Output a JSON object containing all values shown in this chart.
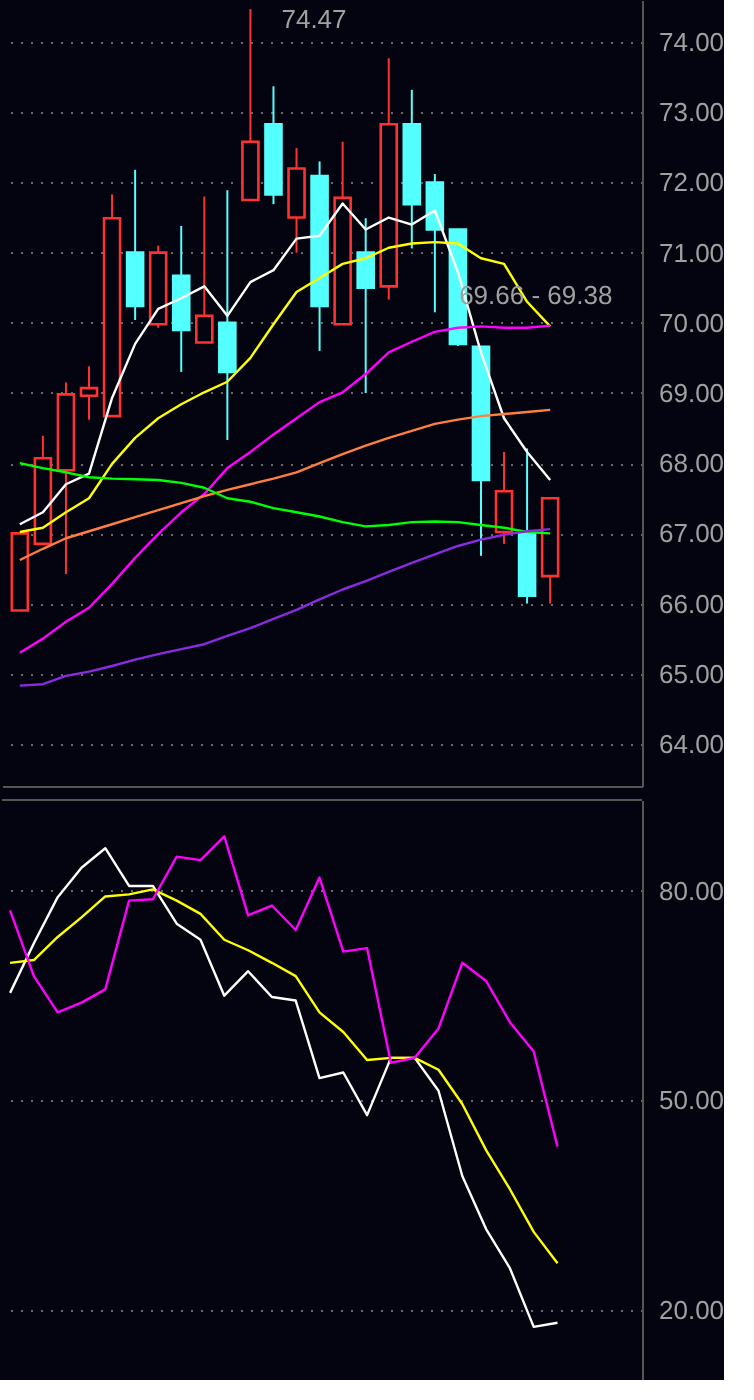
{
  "chart_data": [
    {
      "type": "candlestick",
      "categories": [
        null,
        null,
        null,
        null,
        null,
        null,
        null,
        null,
        null,
        null,
        null,
        null,
        null,
        null,
        null,
        null,
        null,
        null,
        null,
        null,
        null,
        null,
        null,
        null
      ],
      "ohlc": [
        [
          65.9,
          67.0,
          65.9,
          67.0
        ],
        [
          66.85,
          68.39,
          66.85,
          68.07
        ],
        [
          67.9,
          69.15,
          66.42,
          68.98
        ],
        [
          68.96,
          69.38,
          68.62,
          69.07
        ],
        [
          68.67,
          71.83,
          68.67,
          71.49
        ],
        [
          71.0,
          72.18,
          70.04,
          70.24
        ],
        [
          69.98,
          71.1,
          69.93,
          71.0
        ],
        [
          70.67,
          71.38,
          69.3,
          69.9
        ],
        [
          69.72,
          71.8,
          69.72,
          70.1
        ],
        [
          70.0,
          71.89,
          68.33,
          69.3
        ],
        [
          71.75,
          74.47,
          71.75,
          72.58
        ],
        [
          72.83,
          73.37,
          71.69,
          71.83
        ],
        [
          71.5,
          72.49,
          71.0,
          72.2
        ],
        [
          72.09,
          72.3,
          69.6,
          70.24
        ],
        [
          69.98,
          72.58,
          69.98,
          71.78
        ],
        [
          71.0,
          71.49,
          69.0,
          70.5
        ],
        [
          70.52,
          73.77,
          70.33,
          72.83
        ],
        [
          72.83,
          73.32,
          71.06,
          71.69
        ],
        [
          72.0,
          72.12,
          70.15,
          71.33
        ],
        [
          71.33,
          71.33,
          69.67,
          69.7
        ],
        [
          69.66,
          69.66,
          66.68,
          67.76
        ],
        [
          67.02,
          68.16,
          66.85,
          67.6
        ],
        [
          67.0,
          68.21,
          66.0,
          66.11
        ],
        [
          66.39,
          67.5,
          66.0,
          67.5
        ]
      ],
      "colors": [
        "#ff3232",
        "#ff3232",
        "#ff3232",
        "#ff3232",
        "#ff3232",
        "#54ffff",
        "#ff3232",
        "#54ffff",
        "#ff3232",
        "#54ffff",
        "#ff3232",
        "#54ffff",
        "#ff3232",
        "#54ffff",
        "#ff3232",
        "#54ffff",
        "#ff3232",
        "#54ffff",
        "#54ffff",
        "#54ffff",
        "#54ffff",
        "#ff3232",
        "#54ffff",
        "#ff3232"
      ],
      "series": [
        {
          "type": "line",
          "color": "#ffffff",
          "values": [
            67.13,
            67.3,
            67.7,
            67.85,
            68.93,
            69.7,
            70.2,
            70.35,
            70.52,
            70.1,
            70.58,
            70.75,
            71.2,
            71.24,
            71.7,
            71.33,
            71.5,
            71.4,
            71.6,
            70.72,
            69.58,
            68.64,
            68.16,
            67.76
          ]
        },
        {
          "type": "line",
          "color": "#ffff00",
          "values": [
            67.02,
            67.08,
            67.3,
            67.5,
            67.99,
            68.36,
            68.64,
            68.84,
            69.01,
            69.16,
            69.5,
            69.98,
            70.44,
            70.64,
            70.84,
            70.92,
            71.07,
            71.13,
            71.15,
            71.13,
            70.92,
            70.84,
            70.3,
            69.95
          ]
        },
        {
          "type": "line",
          "color": "#ff00ff",
          "values": [
            65.3,
            65.5,
            65.74,
            65.94,
            66.28,
            66.65,
            66.99,
            67.3,
            67.56,
            67.93,
            68.16,
            68.41,
            68.64,
            68.87,
            69.01,
            69.27,
            69.58,
            69.73,
            69.87,
            69.93,
            69.95,
            69.93,
            69.93,
            69.96
          ]
        },
        {
          "type": "line",
          "color": "#ff7f3f",
          "values": [
            66.62,
            66.78,
            66.93,
            67.03,
            67.13,
            67.23,
            67.33,
            67.43,
            67.53,
            67.62,
            67.7,
            67.78,
            67.87,
            68.0,
            68.13,
            68.25,
            68.36,
            68.46,
            68.56,
            68.62,
            68.67,
            68.7,
            68.73,
            68.76
          ]
        },
        {
          "type": "line",
          "color": "#00ff00",
          "values": [
            68.0,
            67.93,
            67.87,
            67.8,
            67.78,
            67.77,
            67.76,
            67.72,
            67.65,
            67.5,
            67.45,
            67.36,
            67.3,
            67.24,
            67.16,
            67.1,
            67.12,
            67.16,
            67.17,
            67.16,
            67.12,
            67.08,
            67.02,
            67.0
          ]
        },
        {
          "type": "line",
          "color": "#8a2be2",
          "values": [
            64.83,
            64.85,
            64.97,
            65.03,
            65.11,
            65.2,
            65.28,
            65.35,
            65.42,
            65.54,
            65.65,
            65.78,
            65.91,
            66.06,
            66.2,
            66.32,
            66.45,
            66.58,
            66.7,
            66.82,
            66.91,
            66.98,
            67.03,
            67.06
          ]
        }
      ],
      "ylim": [
        63.4,
        74.6
      ],
      "yticks": [
        {
          "value": 64,
          "label": "64.00"
        },
        {
          "value": 65,
          "label": "65.00"
        },
        {
          "value": 66,
          "label": "66.00"
        },
        {
          "value": 67,
          "label": "67.00"
        },
        {
          "value": 68,
          "label": "68.00"
        },
        {
          "value": 69,
          "label": "69.00"
        },
        {
          "value": 70,
          "label": "70.00"
        },
        {
          "value": 71,
          "label": "71.00"
        },
        {
          "value": 72,
          "label": "72.00"
        },
        {
          "value": 73,
          "label": "73.00"
        },
        {
          "value": 74,
          "label": "74.00"
        }
      ],
      "annotations": [
        "74.47",
        "69.66 - 69.38"
      ],
      "tick_labels": "y",
      "grid": "y",
      "marker": "none",
      "line_style": "solid"
    },
    {
      "type": "line",
      "categories": [
        null,
        null,
        null,
        null,
        null,
        null,
        null,
        null,
        null,
        null,
        null,
        null,
        null,
        null,
        null,
        null,
        null,
        null,
        null,
        null,
        null,
        null,
        null,
        null
      ],
      "series": [
        {
          "color": "#ffffff",
          "values": [
            65.4,
            72.5,
            79.1,
            83.3,
            86.1,
            80.7,
            80.7,
            75.3,
            73.0,
            65.0,
            68.5,
            64.8,
            64.3,
            53.2,
            54.0,
            47.9,
            56.1,
            56.1,
            51.4,
            39.2,
            31.6,
            26.0,
            17.6,
            18.2
          ]
        },
        {
          "color": "#ffff00",
          "values": [
            69.7,
            70.1,
            73.4,
            76.2,
            79.2,
            79.5,
            80.2,
            78.6,
            76.7,
            73.0,
            71.5,
            69.7,
            67.8,
            62.6,
            59.8,
            55.8,
            56.1,
            56.1,
            54.4,
            49.5,
            42.9,
            37.3,
            31.2,
            26.7
          ]
        },
        {
          "color": "#ff00ff",
          "values": [
            77.2,
            67.8,
            62.6,
            64.0,
            65.9,
            78.6,
            78.8,
            84.9,
            84.4,
            87.8,
            76.5,
            77.9,
            74.4,
            81.9,
            71.3,
            71.8,
            55.4,
            56.1,
            60.3,
            69.7,
            67.1,
            61.2,
            57.0,
            43.4
          ]
        }
      ],
      "ylim": [
        10,
        93
      ],
      "yticks": [
        {
          "value": 20,
          "label": "20.00"
        },
        {
          "value": 50,
          "label": "50.00"
        },
        {
          "value": 80,
          "label": "80.00"
        }
      ],
      "tick_labels": "y",
      "grid": "y",
      "marker": "none",
      "line_style": "solid"
    }
  ]
}
